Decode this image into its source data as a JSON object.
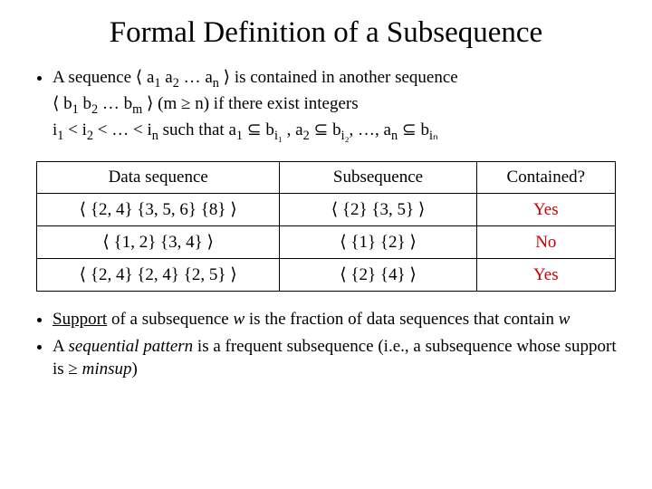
{
  "title": "Formal Definition of a Subsequence",
  "defn": {
    "line1_pre": "A sequence ⟨ a",
    "line1_s1": "1",
    "line1_mid1": " a",
    "line1_s2": "2",
    "line1_mid2": " … a",
    "line1_sn": "n",
    "line1_post": " ⟩ is contained in another sequence",
    "line2_pre": "⟨ b",
    "line2_s1": "1",
    "line2_mid1": " b",
    "line2_s2": "2",
    "line2_mid2": " … b",
    "line2_sm": "m",
    "line2_post": " ⟩ (m ≥ n) if there exist integers",
    "line3_pre": "i",
    "line3_s1": "1",
    "line3_mid1": " < i",
    "line3_s2": "2",
    "line3_mid2": " < … < i",
    "line3_sn": "n",
    "line3_mid3": " such that a",
    "line3_a1sub": "1",
    "line3_sub1": " ⊆ b",
    "line3_bi1": "i₁",
    "line3_c1": " , a",
    "line3_a2sub": "2",
    "line3_sub2": " ⊆ b",
    "line3_bi2": "i₂",
    "line3_c2": ", …, a",
    "line3_ansub": "n",
    "line3_sub3": " ⊆ b",
    "line3_bin": "iₙ"
  },
  "table": {
    "headers": [
      "Data sequence",
      "Subsequence",
      "Contained?"
    ],
    "rows": [
      {
        "data": "⟨ {2, 4} {3, 5, 6} {8} ⟩",
        "sub": "⟨ {2} {3, 5} ⟩",
        "contained": "Yes",
        "cls": "yes"
      },
      {
        "data": "⟨ {1, 2} {3, 4} ⟩",
        "sub": "⟨ {1} {2} ⟩",
        "contained": "No",
        "cls": "no"
      },
      {
        "data": "⟨ {2, 4} {2, 4} {2, 5} ⟩",
        "sub": "⟨ {2} {4} ⟩",
        "contained": "Yes",
        "cls": "yes"
      }
    ]
  },
  "support": {
    "b1_underline": "Support",
    "b1_text1": " of a subsequence ",
    "b1_w1": "w",
    "b1_text2": " is the fraction of data sequences that contain ",
    "b1_w2": "w",
    "b2_text1": "A ",
    "b2_ital": "sequential pattern",
    "b2_text2": " is a frequent subsequence (i.e., a subsequence whose support is ≥ ",
    "b2_minsup": "minsup",
    "b2_text3": ")"
  }
}
